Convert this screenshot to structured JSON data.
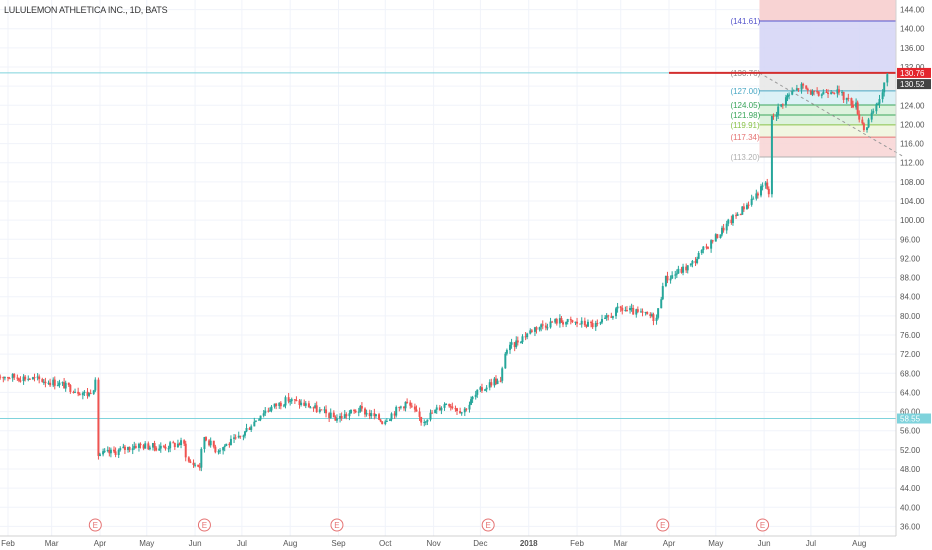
{
  "symbol_title": "LULULEMON ATHLETICA INC., 1D, BATS",
  "colors": {
    "up": "#26a69a",
    "down": "#ef5350",
    "grid": "#f0f3fa",
    "axis_text": "#555555",
    "hline": "#7fd3dc",
    "price_badge": "#e3262d",
    "price_badge_dark": "#444444",
    "fib_red_zone": "#f8d3d3",
    "fib_blue_zone": "#d4d4f6",
    "fib_grey_zone": "#e6e6e6",
    "fib_cyan_zone": "#d6eef4",
    "fib_green_zone": "#d7f0d7",
    "fib_light_zone": "#eef4dc",
    "earnings": "#e57373"
  },
  "chart_data": {
    "type": "candlestick",
    "title": "LULULEMON ATHLETICA INC., 1D, BATS",
    "y_axis": {
      "position": "right",
      "min": 34,
      "max": 146,
      "ticks": [
        36.0,
        40.0,
        44.0,
        48.0,
        52.0,
        56.0,
        60.0,
        64.0,
        68.0,
        72.0,
        76.0,
        80.0,
        84.0,
        88.0,
        92.0,
        96.0,
        100.0,
        104.0,
        108.0,
        112.0,
        116.0,
        120.0,
        124.0,
        128.0,
        132.0,
        136.0,
        140.0,
        144.0
      ],
      "tick_labels": [
        "36.00",
        "40.00",
        "44.00",
        "48.00",
        "52.00",
        "56.00",
        "60.00",
        "64.00",
        "68.00",
        "72.00",
        "76.00",
        "80.00",
        "84.00",
        "88.00",
        "92.00",
        "96.00",
        "100.00",
        "104.00",
        "108.00",
        "112.00",
        "116.00",
        "120.00",
        "124.00",
        "128.00",
        "132.00",
        "136.00",
        "140.00",
        "144.00"
      ]
    },
    "x_axis": {
      "start": "2017-02-01",
      "end": "2018-08-31",
      "tick_dates": [
        "2017-02-01",
        "2017-03-01",
        "2017-04-01",
        "2017-05-01",
        "2017-06-01",
        "2017-07-01",
        "2017-08-01",
        "2017-09-01",
        "2017-10-01",
        "2017-11-01",
        "2017-12-01",
        "2018-01-01",
        "2018-02-01",
        "2018-03-01",
        "2018-04-01",
        "2018-05-01",
        "2018-06-01",
        "2018-07-01",
        "2018-08-01"
      ],
      "tick_labels": [
        "Feb",
        "Mar",
        "Apr",
        "May",
        "Jun",
        "Jul",
        "Aug",
        "Sep",
        "Oct",
        "Nov",
        "Dec",
        "2018",
        "Feb",
        "Mar",
        "Apr",
        "May",
        "Jun",
        "Jul",
        "Aug"
      ]
    },
    "price_path": [
      [
        "2017-01-25",
        67.5
      ],
      [
        "2017-02-15",
        67.0
      ],
      [
        "2017-03-05",
        66.0
      ],
      [
        "2017-03-25",
        63.5
      ],
      [
        "2017-03-30",
        66.0
      ],
      [
        "2017-03-31",
        51.0
      ],
      [
        "2017-04-10",
        51.5
      ],
      [
        "2017-04-25",
        53.0
      ],
      [
        "2017-05-10",
        52.5
      ],
      [
        "2017-05-25",
        53.5
      ],
      [
        "2017-05-28",
        49.5
      ],
      [
        "2017-06-05",
        48.5
      ],
      [
        "2017-06-07",
        55.0
      ],
      [
        "2017-06-15",
        52.0
      ],
      [
        "2017-06-30",
        54.5
      ],
      [
        "2017-07-15",
        60.0
      ],
      [
        "2017-07-31",
        62.5
      ],
      [
        "2017-08-15",
        61.0
      ],
      [
        "2017-08-31",
        58.5
      ],
      [
        "2017-09-15",
        60.5
      ],
      [
        "2017-09-30",
        58.0
      ],
      [
        "2017-10-15",
        62.0
      ],
      [
        "2017-10-25",
        58.0
      ],
      [
        "2017-11-10",
        62.0
      ],
      [
        "2017-11-20",
        60.0
      ],
      [
        "2017-11-30",
        64.0
      ],
      [
        "2017-12-10",
        66.5
      ],
      [
        "2017-12-15",
        66.0
      ],
      [
        "2017-12-17",
        72.5
      ],
      [
        "2018-01-05",
        77.5
      ],
      [
        "2018-01-20",
        79.0
      ],
      [
        "2018-02-01",
        78.5
      ],
      [
        "2018-02-15",
        78.0
      ],
      [
        "2018-03-01",
        81.5
      ],
      [
        "2018-03-25",
        79.5
      ],
      [
        "2018-03-29",
        87.5
      ],
      [
        "2018-04-15",
        90.5
      ],
      [
        "2018-04-30",
        96.0
      ],
      [
        "2018-05-10",
        99.5
      ],
      [
        "2018-05-25",
        104.5
      ],
      [
        "2018-06-02",
        107.5
      ],
      [
        "2018-06-05",
        105.5
      ],
      [
        "2018-06-06",
        121.0
      ],
      [
        "2018-06-15",
        125.5
      ],
      [
        "2018-06-25",
        128.0
      ],
      [
        "2018-07-05",
        126.0
      ],
      [
        "2018-07-15",
        127.5
      ],
      [
        "2018-07-30",
        124.0
      ],
      [
        "2018-08-05",
        119.0
      ],
      [
        "2018-08-15",
        125.5
      ],
      [
        "2018-08-20",
        130.5
      ]
    ],
    "last_price": {
      "value": 130.76,
      "label": "130.76"
    },
    "second_price": {
      "value": 130.52,
      "label": "130.52"
    },
    "support_line": {
      "value": 58.55,
      "label": "58.55"
    },
    "resistance_line": {
      "value": 130.76
    },
    "fib_levels": [
      {
        "value": 141.61,
        "label": "(141.61)"
      },
      {
        "value": 130.76,
        "label": "(130.76)"
      },
      {
        "value": 127.0,
        "label": "(127.00)"
      },
      {
        "value": 124.05,
        "label": "(124.05)"
      },
      {
        "value": 121.98,
        "label": "(121.98)"
      },
      {
        "value": 119.91,
        "label": "(119.91)"
      },
      {
        "value": 117.34,
        "label": "(117.34)"
      },
      {
        "value": 113.2,
        "label": "(113.20)"
      }
    ],
    "earnings_markers": {
      "label": "E",
      "dates": [
        "2017-03-29",
        "2017-06-07",
        "2017-08-31",
        "2017-12-06",
        "2018-03-28",
        "2018-05-31"
      ]
    }
  }
}
